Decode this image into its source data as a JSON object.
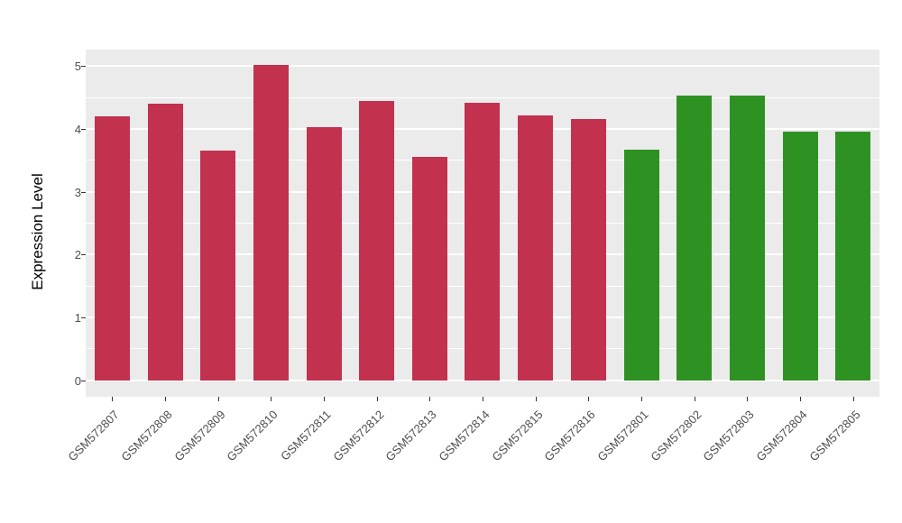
{
  "chart_data": {
    "type": "bar",
    "title": "",
    "xlabel": "",
    "ylabel": "Expression Level",
    "categories": [
      "GSM572807",
      "GSM572808",
      "GSM572809",
      "GSM572810",
      "GSM572811",
      "GSM572812",
      "GSM572813",
      "GSM572814",
      "GSM572815",
      "GSM572816",
      "GSM572801",
      "GSM572802",
      "GSM572803",
      "GSM572804",
      "GSM572805"
    ],
    "values": [
      4.2,
      4.4,
      3.65,
      5.02,
      4.03,
      4.45,
      3.55,
      4.41,
      4.21,
      4.15,
      3.67,
      4.53,
      4.53,
      3.96,
      3.96
    ],
    "bar_groups": [
      "red",
      "red",
      "red",
      "red",
      "red",
      "red",
      "red",
      "red",
      "red",
      "red",
      "green",
      "green",
      "green",
      "green",
      "green"
    ],
    "group_colors": {
      "red": "#C2314E",
      "green": "#2E9223"
    },
    "ylim": [
      0,
      5
    ],
    "yticks": [
      0,
      1,
      2,
      3,
      4,
      5
    ],
    "minor_ticks": [
      0.5,
      1.5,
      2.5,
      3.5,
      4.5
    ],
    "panel_background": "#EBEBEB",
    "grid_color": "#FFFFFF",
    "grid": "on",
    "legend": "none"
  }
}
